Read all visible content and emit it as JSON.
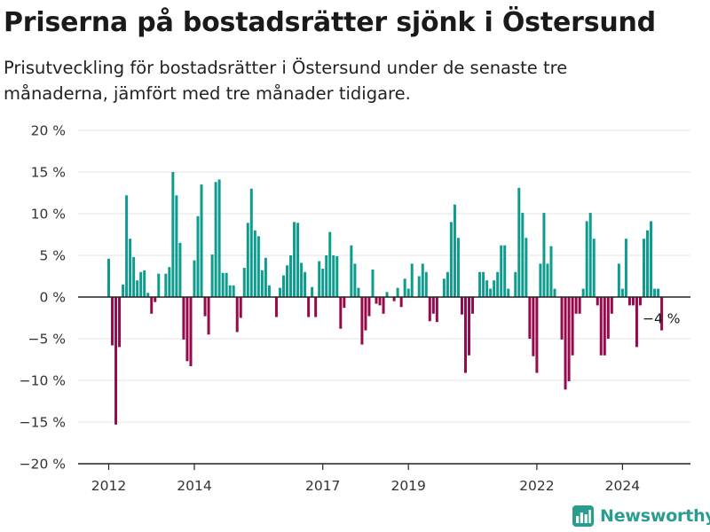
{
  "title": "Priserna på bostadsrätter sjönk i Östersund",
  "subtitle": "Prisutveckling för bostadsrätter i Östersund under de senaste tre månaderna, jämfört med tre månader tidigare.",
  "brand": "Newsworthy",
  "colors": {
    "positive": "#0e9c8f",
    "negative": "#960a4b",
    "grid": "#e3e3e3",
    "axis": "#222222"
  },
  "chart_data": {
    "type": "bar",
    "ylim": [
      -20,
      20
    ],
    "y_ticks": [
      20,
      15,
      10,
      5,
      0,
      -5,
      -10,
      -15,
      -20
    ],
    "y_tick_labels": [
      "20 %",
      "15 %",
      "10 %",
      "5 %",
      "0 %",
      "−5 %",
      "−10 %",
      "−15 %",
      "−20 %"
    ],
    "x_tick_labels": [
      "2012",
      "2014",
      "2017",
      "2019",
      "2022",
      "2024"
    ],
    "x_tick_index": [
      0,
      24,
      60,
      84,
      120,
      144
    ],
    "values": [
      4.6,
      -5.8,
      -15.3,
      -6.0,
      1.5,
      12.2,
      7.0,
      4.8,
      2.0,
      3.0,
      3.2,
      0.5,
      -2.0,
      -0.6,
      2.8,
      0.0,
      2.8,
      3.6,
      15.0,
      12.2,
      6.5,
      -5.1,
      -7.7,
      -8.3,
      4.4,
      9.7,
      13.5,
      -2.3,
      -4.5,
      5.1,
      13.8,
      14.1,
      2.9,
      2.9,
      1.4,
      1.4,
      -4.2,
      -2.5,
      3.5,
      8.9,
      13.0,
      8.0,
      7.3,
      3.2,
      4.7,
      1.4,
      0.0,
      -2.4,
      1.1,
      2.6,
      3.8,
      5.0,
      9.0,
      8.9,
      4.1,
      3.0,
      -2.4,
      1.2,
      -2.4,
      4.3,
      3.4,
      5.0,
      7.8,
      5.0,
      4.9,
      -3.8,
      -1.3,
      0.0,
      6.2,
      4.0,
      1.1,
      -5.7,
      -4.0,
      -2.3,
      3.3,
      -0.8,
      -1.0,
      -2.0,
      0.6,
      0.0,
      -0.5,
      1.1,
      -1.2,
      2.2,
      1.0,
      4.0,
      0.0,
      2.5,
      4.0,
      3.0,
      -2.9,
      -2.0,
      -3.0,
      0.0,
      2.2,
      3.0,
      9.0,
      11.1,
      7.1,
      -2.1,
      -9.1,
      -7.0,
      -2.0,
      0.0,
      3.0,
      3.0,
      2.0,
      1.0,
      2.0,
      3.0,
      6.2,
      6.2,
      1.0,
      0.0,
      3.0,
      13.1,
      10.1,
      7.1,
      -5.0,
      -7.1,
      -9.1,
      4.0,
      10.1,
      4.0,
      6.1,
      1.0,
      0.0,
      -5.1,
      -11.1,
      -10.1,
      -7.0,
      -2.0,
      -2.0,
      1.0,
      9.1,
      10.1,
      7.0,
      -1.0,
      -7.0,
      -7.0,
      -5.0,
      -2.0,
      0.0,
      4.0,
      1.0,
      7.0,
      -1.0,
      -1.0,
      -6.0,
      -1.0,
      7.0,
      8.0,
      9.1,
      1.0,
      1.0,
      -4.0
    ],
    "annotation": "−4 %"
  }
}
